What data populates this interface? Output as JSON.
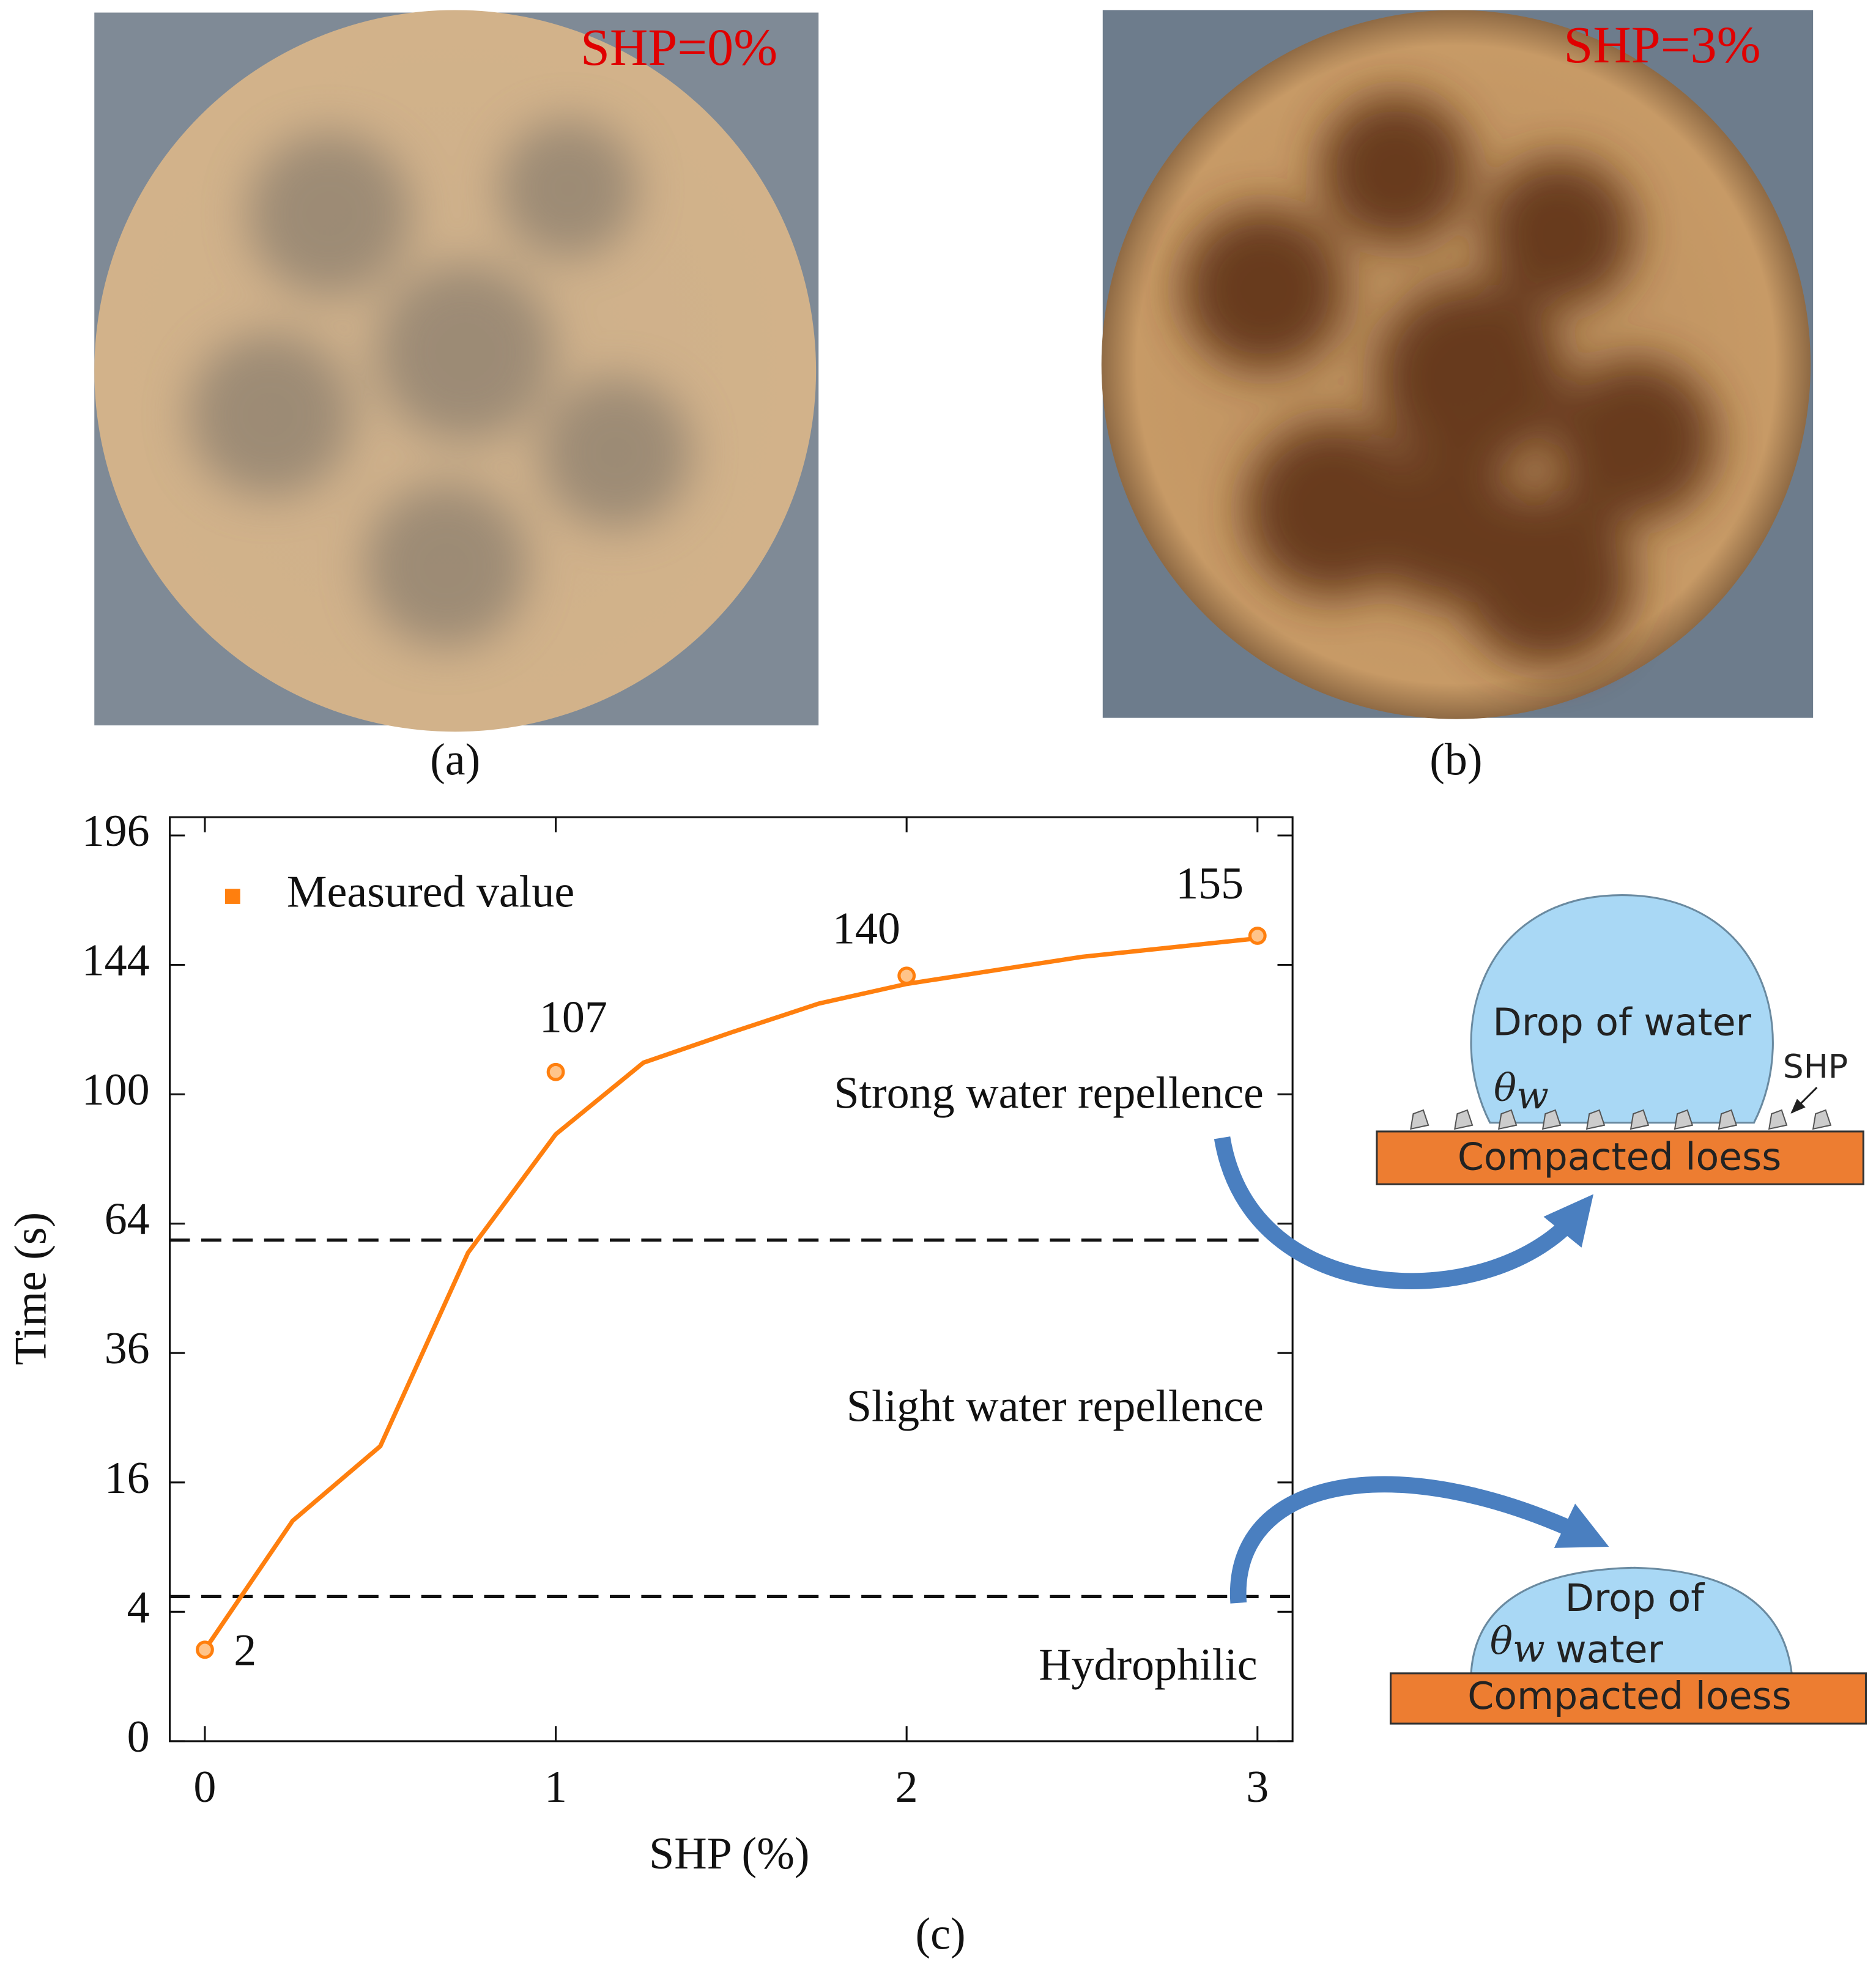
{
  "photos": [
    {
      "label": "SHP=0%",
      "caption": "(a)"
    },
    {
      "label": "SHP=3%",
      "caption": "(b)"
    }
  ],
  "chart_data": {
    "type": "scatter",
    "caption": "(c)",
    "x_label": "SHP (%)",
    "y_label": "Time (s)",
    "yscale": "sqrt",
    "xlim": [
      -0.1,
      3.1
    ],
    "xticks": [
      0,
      1,
      2,
      3
    ],
    "ylim": [
      0,
      204
    ],
    "yticks": [
      0,
      4,
      16,
      36,
      64,
      100,
      144,
      196
    ],
    "series": [
      {
        "name": "Measured value",
        "color": "#ff7f0e",
        "x": [
          0,
          1,
          2,
          3
        ],
        "values": [
          2,
          107,
          140,
          155
        ]
      }
    ],
    "curve": {
      "color": "#ff7f0e",
      "x": [
        0,
        0.25,
        0.5,
        0.75,
        1,
        1.25,
        1.5,
        1.75,
        2,
        2.5,
        3
      ],
      "values": [
        2,
        11.6,
        20.8,
        57,
        88,
        110,
        120,
        130,
        137,
        147,
        154
      ]
    },
    "thresholds": [
      60,
      5
    ],
    "annotations": [
      "Strong water repellence",
      "Slight water repellence",
      "Hydrophilic"
    ]
  },
  "diagrams": [
    {
      "drop": "Drop of water",
      "angle": [
        "θ",
        "w"
      ],
      "particle": "SHP",
      "base": "Compacted loess"
    },
    {
      "drop": [
        "Drop of",
        "water"
      ],
      "angle": [
        "θ",
        "w"
      ],
      "base": "Compacted loess"
    }
  ]
}
